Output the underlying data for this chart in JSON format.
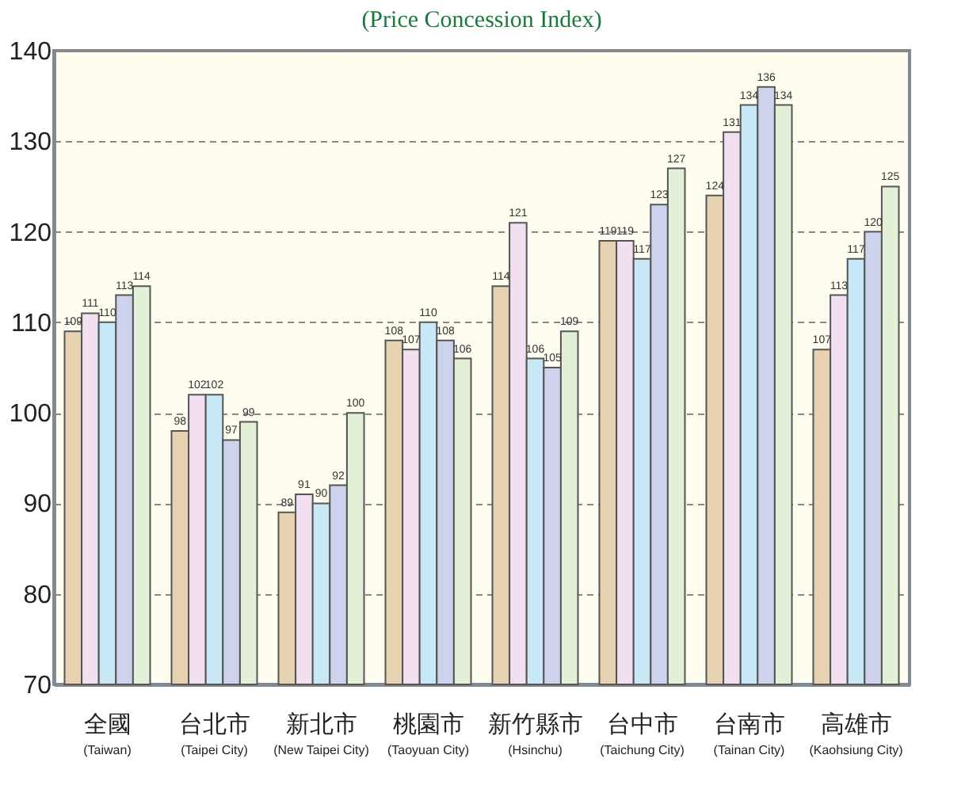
{
  "chart_data": {
    "type": "bar",
    "title": "(Price Concession Index)",
    "categories": [
      "全國\n(Taiwan)",
      "台北市\n(Taipei City)",
      "新北市\n(New Taipei City)",
      "桃園市\n(Taoyuan City)",
      "新竹縣市\n(Hsinchu)",
      "台中市\n(Taichung City)",
      "台南市\n(Tainan City)",
      "高雄市\n(Kaohsiung City)"
    ],
    "series": [
      {
        "color": "#e6d2b0",
        "values": [
          109,
          98,
          89,
          108,
          114,
          119,
          124,
          107
        ]
      },
      {
        "color": "#f2dff0",
        "values": [
          111,
          102,
          91,
          107,
          121,
          119,
          131,
          113
        ]
      },
      {
        "color": "#c8e8f8",
        "values": [
          110,
          102,
          90,
          110,
          106,
          117,
          134,
          117
        ]
      },
      {
        "color": "#cdd3ec",
        "values": [
          113,
          97,
          92,
          108,
          105,
          123,
          136,
          120
        ]
      },
      {
        "color": "#e3f0d8",
        "values": [
          114,
          99,
          100,
          106,
          109,
          127,
          134,
          125
        ]
      }
    ],
    "ylim": [
      70,
      140
    ],
    "yticks": [
      70,
      80,
      90,
      100,
      110,
      120,
      130,
      140
    ],
    "grid": "y",
    "data_labels": true
  }
}
